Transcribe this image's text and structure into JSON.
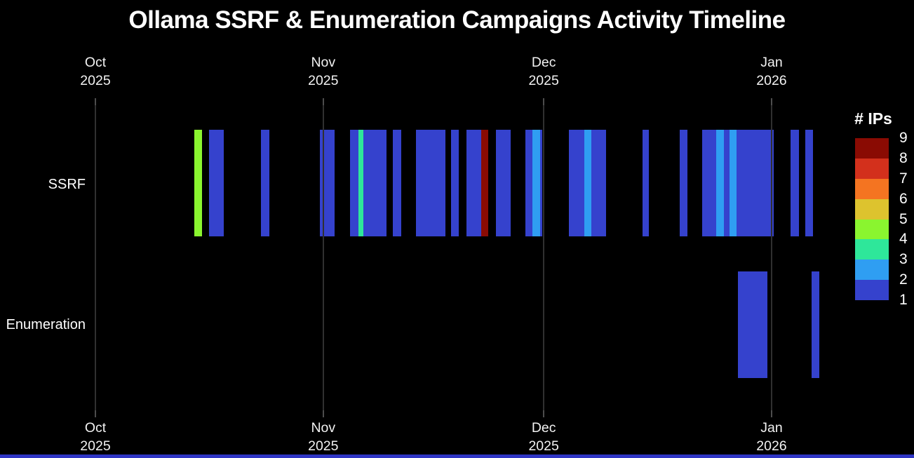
{
  "chart_data": {
    "type": "heatmap",
    "title": "Ollama SSRF & Enumeration Campaigns Activity Timeline",
    "x_axis": {
      "unit": "days since 2025-10-01",
      "months": [
        {
          "line1": "Oct",
          "line2": "2025",
          "day_index": 0
        },
        {
          "line1": "Nov",
          "line2": "2025",
          "day_index": 31
        },
        {
          "line1": "Dec",
          "line2": "2025",
          "day_index": 61
        },
        {
          "line1": "Jan",
          "line2": "2026",
          "day_index": 92
        }
      ],
      "labels_shown_top_and_bottom": true,
      "grid": true
    },
    "colorbar": {
      "label": "# IPs",
      "tick_labels": [
        "9",
        "8",
        "7",
        "6",
        "5",
        "4",
        "3",
        "2",
        "1"
      ],
      "segment_colors_top_to_bottom": [
        "#8a0b03",
        "#d3301c",
        "#f47421",
        "#ddc32e",
        "#8af52f",
        "#2ee79a",
        "#2f9ef2",
        "#3542cd"
      ]
    },
    "ip_color_map": {
      "1": "#3542cd",
      "2": "#2f9ef2",
      "3": "#2ee79a",
      "4": "#8af52f",
      "9": "#8a0b03"
    },
    "rows": [
      {
        "label": "SSRF",
        "segments": [
          {
            "start": 13.46,
            "end": 14.51,
            "ips": 4,
            "date": "Oct 15"
          },
          {
            "start": 15.46,
            "end": 17.46,
            "ips": 1,
            "date": "Oct 17-18"
          },
          {
            "start": 22.52,
            "end": 23.67,
            "ips": 1,
            "date": "Oct 24"
          },
          {
            "start": 30.54,
            "end": 32.54,
            "ips": 1,
            "date": "Nov 1-2"
          },
          {
            "start": 34.64,
            "end": 35.79,
            "ips": 1,
            "date": "Nov 5"
          },
          {
            "start": 35.79,
            "end": 36.46,
            "ips": 3,
            "date": "Nov 6"
          },
          {
            "start": 36.46,
            "end": 39.61,
            "ips": 1,
            "date": "Nov 7-9"
          },
          {
            "start": 40.47,
            "end": 41.61,
            "ips": 1,
            "date": "Nov 11"
          },
          {
            "start": 43.61,
            "end": 47.62,
            "ips": 1,
            "date": "Nov 14-17"
          },
          {
            "start": 48.39,
            "end": 49.44,
            "ips": 1,
            "date": "Nov 19"
          },
          {
            "start": 50.49,
            "end": 52.49,
            "ips": 1,
            "date": "Nov 21-22"
          },
          {
            "start": 52.49,
            "end": 53.45,
            "ips": 9,
            "date": "Nov 23"
          },
          {
            "start": 54.49,
            "end": 56.5,
            "ips": 1,
            "date": "Nov 25-26"
          },
          {
            "start": 58.5,
            "end": 59.46,
            "ips": 1,
            "date": "Nov 29"
          },
          {
            "start": 59.46,
            "end": 60.51,
            "ips": 2,
            "date": "Nov 30"
          },
          {
            "start": 60.51,
            "end": 60.79,
            "ips": 1,
            "date": "Dec 1"
          },
          {
            "start": 64.42,
            "end": 66.52,
            "ips": 1,
            "date": "Dec 5-6"
          },
          {
            "start": 66.52,
            "end": 67.48,
            "ips": 2,
            "date": "Dec 7"
          },
          {
            "start": 67.48,
            "end": 69.48,
            "ips": 1,
            "date": "Dec 8-9"
          },
          {
            "start": 74.44,
            "end": 75.3,
            "ips": 1,
            "date": "Dec 15"
          },
          {
            "start": 79.5,
            "end": 80.55,
            "ips": 1,
            "date": "Dec 20"
          },
          {
            "start": 82.55,
            "end": 84.46,
            "ips": 1,
            "date": "Dec 23-24"
          },
          {
            "start": 84.46,
            "end": 85.51,
            "ips": 2,
            "date": "Dec 25"
          },
          {
            "start": 85.51,
            "end": 86.27,
            "ips": 1,
            "date": "Dec 26"
          },
          {
            "start": 86.27,
            "end": 87.23,
            "ips": 2,
            "date": "Dec 27"
          },
          {
            "start": 87.23,
            "end": 92.29,
            "ips": 1,
            "date": "Dec 28-Jan 1"
          },
          {
            "start": 94.58,
            "end": 95.72,
            "ips": 1,
            "date": "Jan 4"
          },
          {
            "start": 96.58,
            "end": 97.63,
            "ips": 1,
            "date": "Jan 6"
          }
        ]
      },
      {
        "label": "Enumeration",
        "segments": [
          {
            "start": 87.42,
            "end": 91.43,
            "ips": 1,
            "date": "Dec 28-31"
          },
          {
            "start": 97.44,
            "end": 98.49,
            "ips": 1,
            "date": "Jan 7"
          }
        ]
      }
    ]
  }
}
